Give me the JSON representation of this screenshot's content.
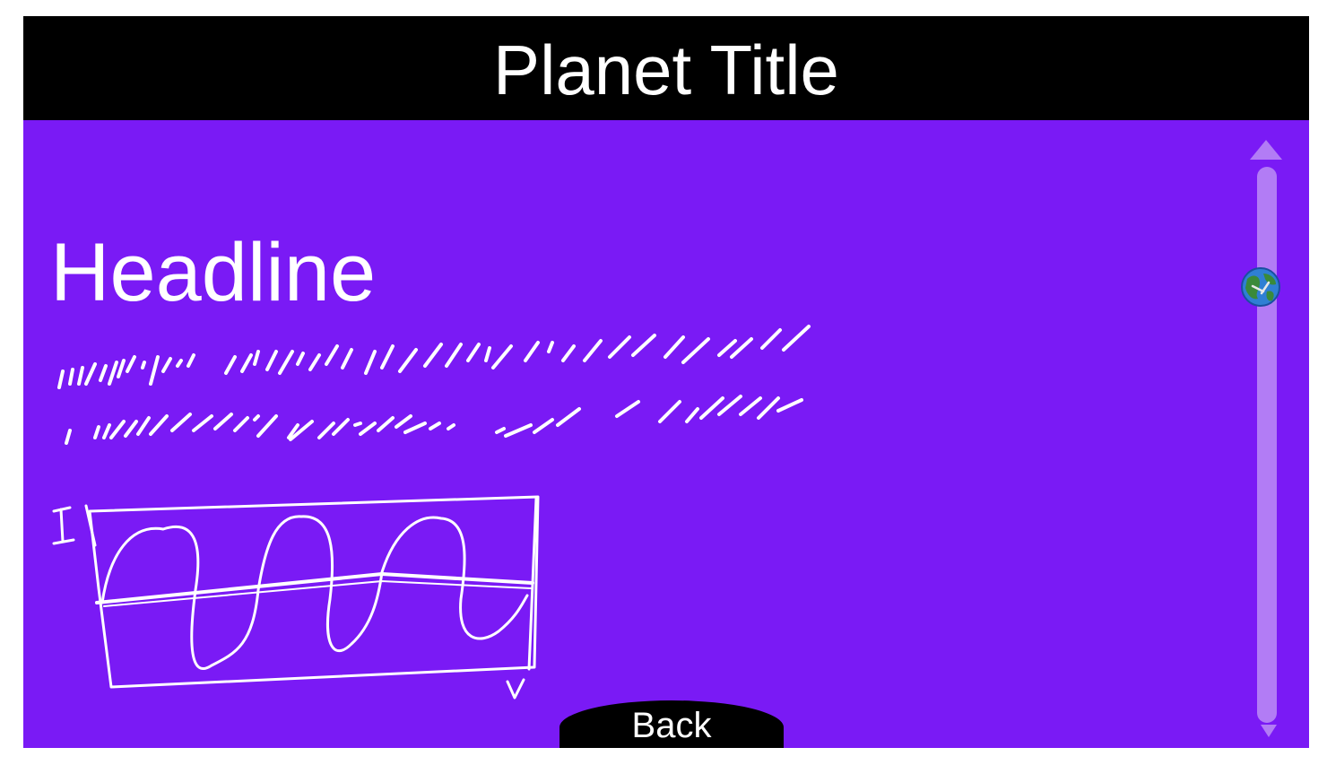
{
  "header": {
    "title": "Planet Title"
  },
  "content": {
    "headline": "Headline",
    "body_text_placeholder": "scribbled-text-lines-icon",
    "graph_placeholder": "sine-wave-graph-icon",
    "graph_y_label": "I",
    "graph_x_label": "V"
  },
  "scrollbar": {
    "thumb_icon": "earth-globe-icon",
    "up_icon": "arrow-up-icon",
    "down_icon": "arrow-down-icon"
  },
  "footer": {
    "back_label": "Back"
  },
  "colors": {
    "background": "#7a1af5",
    "title_bar": "#000000",
    "text": "#ffffff",
    "scroll_track": "#b27cf5",
    "earth_ocean": "#2f7fd4",
    "earth_land": "#3a8a3a"
  }
}
